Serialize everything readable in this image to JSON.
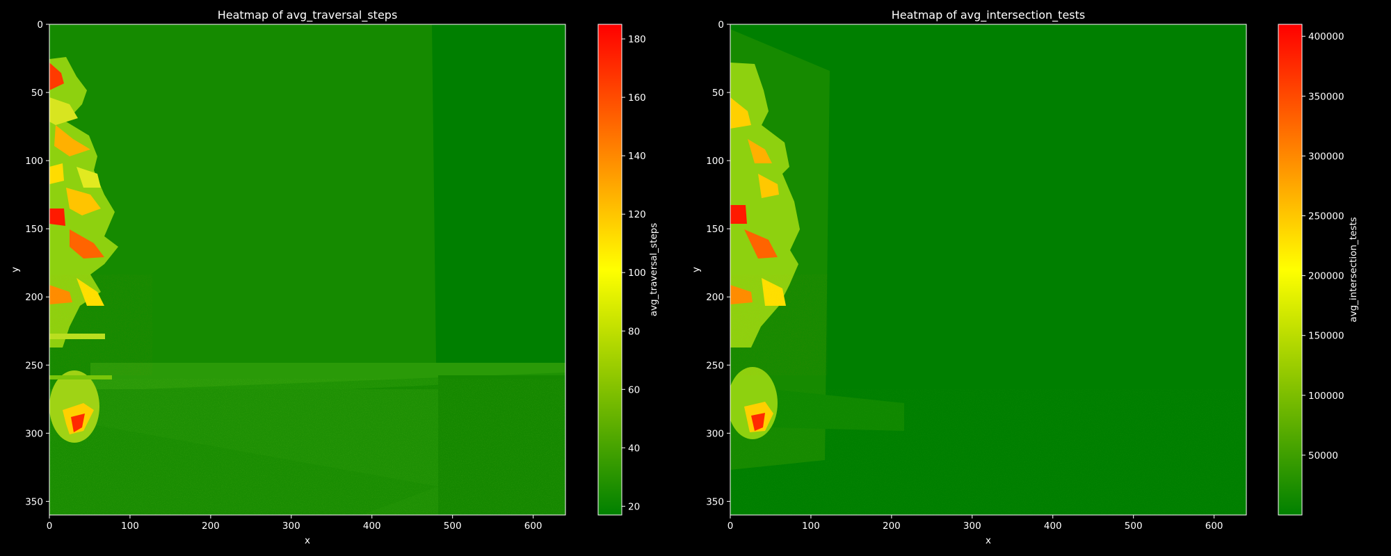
{
  "chart_data": [
    {
      "type": "heatmap",
      "title": "Heatmap of avg_traversal_steps",
      "xlabel": "x",
      "ylabel": "y",
      "xlim": [
        0,
        640
      ],
      "ylim": [
        360,
        0
      ],
      "xticks": [
        0,
        100,
        200,
        300,
        400,
        500,
        600
      ],
      "yticks": [
        0,
        50,
        100,
        150,
        200,
        250,
        300,
        350
      ],
      "colorbar": {
        "label": "avg_traversal_steps",
        "range": [
          17,
          185
        ],
        "ticks": [
          20,
          40,
          60,
          80,
          100,
          120,
          140,
          160,
          180
        ],
        "tick_labels": [
          "20",
          "40",
          "60",
          "80",
          "100",
          "120",
          "140",
          "160",
          "180"
        ]
      },
      "colormap": [
        "#008000",
        "#ffff00",
        "#ff0000"
      ],
      "background_value": 30
    },
    {
      "type": "heatmap",
      "title": "Heatmap of avg_intersection_tests",
      "xlabel": "x",
      "ylabel": "y",
      "xlim": [
        0,
        640
      ],
      "ylim": [
        360,
        0
      ],
      "xticks": [
        0,
        100,
        200,
        300,
        400,
        500,
        600
      ],
      "yticks": [
        0,
        50,
        100,
        150,
        200,
        250,
        300,
        350
      ],
      "colorbar": {
        "label": "avg_intersection_tests",
        "range": [
          0,
          410000
        ],
        "ticks": [
          50000,
          100000,
          150000,
          200000,
          250000,
          300000,
          350000,
          400000
        ],
        "tick_labels": [
          "50000",
          "100000",
          "150000",
          "200000",
          "250000",
          "300000",
          "350000",
          "400000"
        ]
      },
      "colormap": [
        "#008000",
        "#ffff00",
        "#ff0000"
      ],
      "background_value": 15000
    }
  ]
}
